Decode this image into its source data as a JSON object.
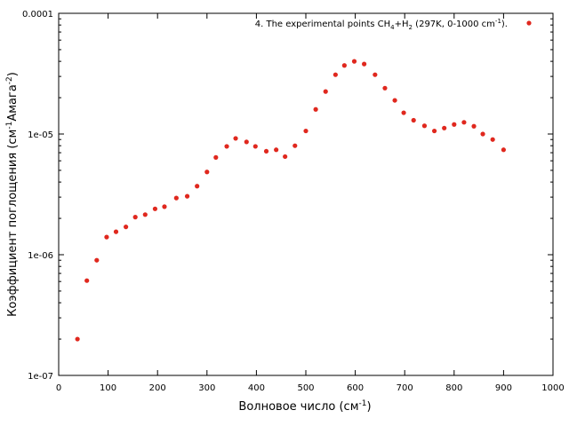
{
  "chart_data": {
    "type": "scatter",
    "title": "",
    "xlabel": {
      "base": "Волновое число (см",
      "sup": "-1",
      "tail": ")"
    },
    "ylabel": {
      "base": "Коэффициент поглощения (см",
      "sup1": "-1",
      "mid": "Амага",
      "sup2": "-2",
      "tail": ")"
    },
    "xlim": [
      0,
      1000
    ],
    "ylim": [
      1e-07,
      0.0001
    ],
    "yscale": "log",
    "grid": false,
    "legend_position": "top-right",
    "x_ticks": [
      0,
      100,
      200,
      300,
      400,
      500,
      600,
      700,
      800,
      900,
      1000
    ],
    "x_tick_labels": [
      "0",
      "100",
      "200",
      "300",
      "400",
      "500",
      "600",
      "700",
      "800",
      "900",
      "1000"
    ],
    "y_ticks": [
      1e-07,
      1e-06,
      1e-05,
      0.0001
    ],
    "y_tick_labels": [
      "1e-07",
      "1e-06",
      "1e-05",
      "0.0001"
    ],
    "series": [
      {
        "name": {
          "p1": "4. The experimental points CH",
          "s1": "4",
          "p2": "+H",
          "s2": "2",
          "p3": " (297K, 0-1000 cm",
          "sup": "-1",
          "p4": ")."
        },
        "color": "#e0281e",
        "x": [
          38,
          57,
          77,
          97,
          116,
          136,
          155,
          175,
          195,
          214,
          238,
          260,
          280,
          300,
          318,
          340,
          358,
          380,
          398,
          420,
          440,
          458,
          478,
          500,
          520,
          540,
          560,
          578,
          598,
          618,
          640,
          660,
          680,
          698,
          718,
          740,
          760,
          780,
          800,
          820,
          840,
          858,
          878,
          900
        ],
        "y": [
          2e-07,
          6.1e-07,
          9e-07,
          1.4e-06,
          1.55e-06,
          1.7e-06,
          2.05e-06,
          2.15e-06,
          2.4e-06,
          2.5e-06,
          2.95e-06,
          3.05e-06,
          3.7e-06,
          4.85e-06,
          6.4e-06,
          7.9e-06,
          9.2e-06,
          8.6e-06,
          7.9e-06,
          7.2e-06,
          7.4e-06,
          6.5e-06,
          8e-06,
          1.06e-05,
          1.6e-05,
          2.25e-05,
          3.1e-05,
          3.7e-05,
          4e-05,
          3.8e-05,
          3.1e-05,
          2.4e-05,
          1.9e-05,
          1.5e-05,
          1.3e-05,
          1.17e-05,
          1.06e-05,
          1.12e-05,
          1.2e-05,
          1.25e-05,
          1.16e-05,
          1e-05,
          9e-06,
          7.4e-06
        ]
      }
    ]
  }
}
